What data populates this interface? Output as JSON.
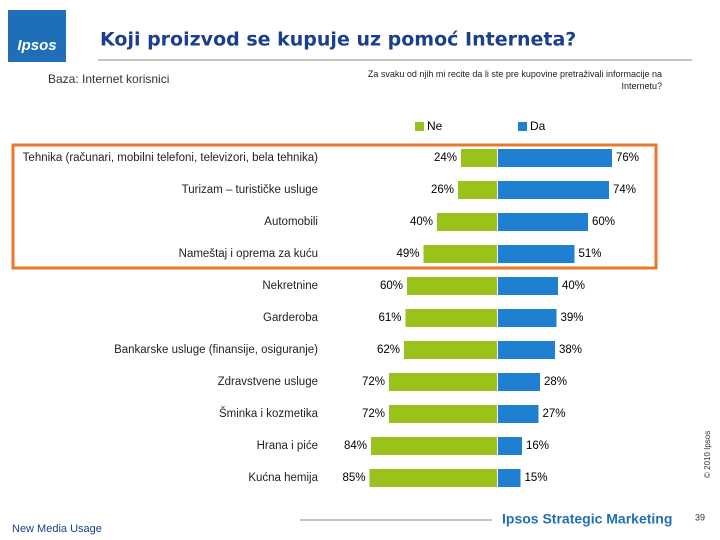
{
  "header": {
    "logo": "Ipsos",
    "title": "Koji proizvod se kupuje uz pomoć Interneta?",
    "base": "Baza: Internet korisnici",
    "question": "Za svaku od njih mi recite da li ste pre kupovine pretraživali informacije na Internetu?"
  },
  "chart_data": {
    "type": "diverging_bar",
    "categories": [
      "Tehnika (računari, mobilni telefoni, televizori, bela tehnika)",
      "Turizam – turističke usluge",
      "Automobili",
      "Nameštaj i oprema za kuću",
      "Nekretnine",
      "Garderoba",
      "Bankarske usluge (finansije, osiguranje)",
      "Zdravstvene usluge",
      "Šminka i kozmetika",
      "Hrana i piće",
      "Kućna hemija"
    ],
    "series": [
      {
        "name": "Ne",
        "color": "#99c31c",
        "values": [
          24,
          26,
          40,
          49,
          60,
          61,
          62,
          72,
          72,
          84,
          85
        ],
        "value_labels": [
          "24%",
          "26%",
          "40%",
          "49%",
          "60%",
          "61%",
          "62%",
          "72%",
          "72%",
          "84%",
          "85%"
        ]
      },
      {
        "name": "Da",
        "color": "#1f7fd0",
        "values": [
          76,
          74,
          60,
          51,
          40,
          39,
          38,
          28,
          27,
          16,
          15
        ],
        "value_labels": [
          "76%",
          "74%",
          "60%",
          "51%",
          "40%",
          "39%",
          "38%",
          "28%",
          "27%",
          "16%",
          "15%"
        ]
      }
    ]
  },
  "footer": {
    "copyright": "© 2010 Ipsos",
    "left": "New Media Usage",
    "brand": "Ipsos Strategic Marketing",
    "page": "39"
  }
}
